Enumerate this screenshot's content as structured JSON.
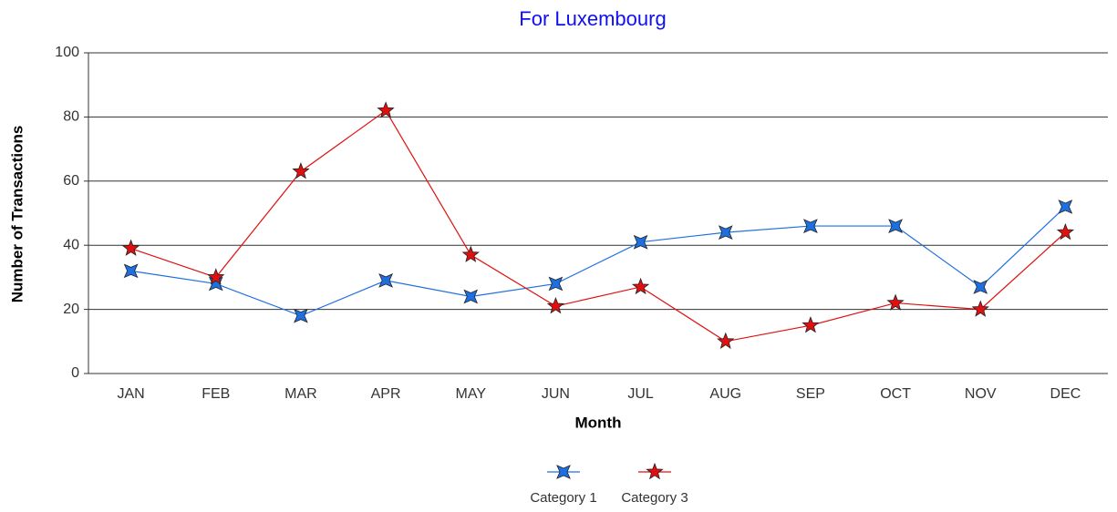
{
  "chart_data": {
    "type": "line",
    "title": "For Luxembourg",
    "x_label": "Month",
    "y_label": "Number of Transactions",
    "categories": [
      "JAN",
      "FEB",
      "MAR",
      "APR",
      "MAY",
      "JUN",
      "JUL",
      "AUG",
      "SEP",
      "OCT",
      "NOV",
      "DEC"
    ],
    "series": [
      {
        "name": "Category 1",
        "color": "#1e6fe0",
        "values": [
          32,
          28,
          18,
          29,
          24,
          28,
          41,
          44,
          46,
          46,
          27,
          52
        ]
      },
      {
        "name": "Category 3",
        "color": "#e01010",
        "values": [
          39,
          30,
          63,
          82,
          37,
          21,
          27,
          10,
          15,
          22,
          20,
          44
        ]
      }
    ],
    "ylim": [
      0,
      100
    ],
    "yticks": [
      0,
      20,
      40,
      60,
      80,
      100
    ],
    "grid": true,
    "legend": "bottom"
  }
}
